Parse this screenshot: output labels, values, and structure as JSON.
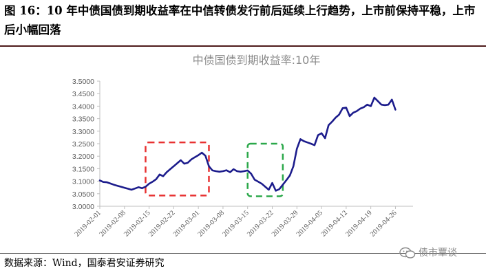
{
  "figure": {
    "title": "图 16：10 年中债国债到期收益率在中信转债发行前后延续上行趋势，上市前保持平稳，上市后小幅回落",
    "source": "数据来源：Wind，国泰君安证券研究",
    "watermark": "债市覃谈",
    "watermark_icon": "wechat-icon"
  },
  "chart_data": {
    "type": "line",
    "title": "中债国债到期收益率:10年",
    "xlabel": "",
    "ylabel": "",
    "ylim": [
      3.0,
      3.5
    ],
    "yticks": [
      "3.0000",
      "3.0500",
      "3.1000",
      "3.1500",
      "3.2000",
      "3.2500",
      "3.3000",
      "3.3500",
      "3.4000",
      "3.4500",
      "3.5000"
    ],
    "xticks": [
      "2019-02-01",
      "2019-02-08",
      "2019-02-15",
      "2019-02-22",
      "2019-03-01",
      "2019-03-08",
      "2019-03-15",
      "2019-03-22",
      "2019-03-29",
      "2019-04-05",
      "2019-04-12",
      "2019-04-19",
      "2019-04-26"
    ],
    "series": [
      {
        "color": "#1c1c8c",
        "values": [
          [
            "2019-02-01",
            3.103
          ],
          [
            "2019-02-02",
            3.097
          ],
          [
            "2019-02-03",
            3.096
          ],
          [
            "2019-02-04",
            3.091
          ],
          [
            "2019-02-05",
            3.086
          ],
          [
            "2019-02-06",
            3.082
          ],
          [
            "2019-02-07",
            3.078
          ],
          [
            "2019-02-08",
            3.074
          ],
          [
            "2019-02-09",
            3.07
          ],
          [
            "2019-02-10",
            3.066
          ],
          [
            "2019-02-11",
            3.071
          ],
          [
            "2019-02-12",
            3.076
          ],
          [
            "2019-02-13",
            3.072
          ],
          [
            "2019-02-14",
            3.078
          ],
          [
            "2019-02-15",
            3.09
          ],
          [
            "2019-02-16",
            3.098
          ],
          [
            "2019-02-17",
            3.108
          ],
          [
            "2019-02-18",
            3.127
          ],
          [
            "2019-02-19",
            3.12
          ],
          [
            "2019-02-20",
            3.136
          ],
          [
            "2019-02-21",
            3.148
          ],
          [
            "2019-02-22",
            3.16
          ],
          [
            "2019-02-23",
            3.172
          ],
          [
            "2019-02-24",
            3.184
          ],
          [
            "2019-02-25",
            3.17
          ],
          [
            "2019-02-26",
            3.174
          ],
          [
            "2019-02-27",
            3.187
          ],
          [
            "2019-02-28",
            3.196
          ],
          [
            "2019-03-01",
            3.204
          ],
          [
            "2019-03-02",
            3.214
          ],
          [
            "2019-03-03",
            3.202
          ],
          [
            "2019-03-04",
            3.16
          ],
          [
            "2019-03-05",
            3.143
          ],
          [
            "2019-03-06",
            3.14
          ],
          [
            "2019-03-07",
            3.138
          ],
          [
            "2019-03-08",
            3.14
          ],
          [
            "2019-03-09",
            3.144
          ],
          [
            "2019-03-10",
            3.136
          ],
          [
            "2019-03-11",
            3.148
          ],
          [
            "2019-03-12",
            3.14
          ],
          [
            "2019-03-13",
            3.138
          ],
          [
            "2019-03-14",
            3.14
          ],
          [
            "2019-03-15",
            3.143
          ],
          [
            "2019-03-16",
            3.13
          ],
          [
            "2019-03-17",
            3.106
          ],
          [
            "2019-03-18",
            3.098
          ],
          [
            "2019-03-19",
            3.09
          ],
          [
            "2019-03-20",
            3.078
          ],
          [
            "2019-03-21",
            3.066
          ],
          [
            "2019-03-22",
            3.093
          ],
          [
            "2019-03-23",
            3.062
          ],
          [
            "2019-03-24",
            3.068
          ],
          [
            "2019-03-25",
            3.086
          ],
          [
            "2019-03-26",
            3.104
          ],
          [
            "2019-03-27",
            3.123
          ],
          [
            "2019-03-28",
            3.16
          ],
          [
            "2019-03-29",
            3.23
          ],
          [
            "2019-03-30",
            3.268
          ],
          [
            "2019-03-31",
            3.26
          ],
          [
            "2019-04-01",
            3.255
          ],
          [
            "2019-04-02",
            3.25
          ],
          [
            "2019-04-03",
            3.244
          ],
          [
            "2019-04-04",
            3.284
          ],
          [
            "2019-04-05",
            3.292
          ],
          [
            "2019-04-06",
            3.272
          ],
          [
            "2019-04-07",
            3.324
          ],
          [
            "2019-04-08",
            3.338
          ],
          [
            "2019-04-09",
            3.354
          ],
          [
            "2019-04-10",
            3.366
          ],
          [
            "2019-04-11",
            3.392
          ],
          [
            "2019-04-12",
            3.394
          ],
          [
            "2019-04-13",
            3.36
          ],
          [
            "2019-04-14",
            3.374
          ],
          [
            "2019-04-15",
            3.38
          ],
          [
            "2019-04-16",
            3.39
          ],
          [
            "2019-04-17",
            3.396
          ],
          [
            "2019-04-18",
            3.406
          ],
          [
            "2019-04-19",
            3.4
          ],
          [
            "2019-04-20",
            3.434
          ],
          [
            "2019-04-21",
            3.42
          ],
          [
            "2019-04-22",
            3.406
          ],
          [
            "2019-04-23",
            3.404
          ],
          [
            "2019-04-24",
            3.406
          ],
          [
            "2019-04-25",
            3.426
          ],
          [
            "2019-04-26",
            3.386
          ]
        ]
      }
    ],
    "annotations": [
      {
        "type": "dashed-box",
        "color": "#e83232",
        "x": [
          "2019-02-14",
          "2019-03-04"
        ],
        "y": [
          3.043,
          3.255
        ]
      },
      {
        "type": "dashed-box",
        "color": "#2ba84a",
        "x": [
          "2019-03-15",
          "2019-03-25"
        ],
        "y": [
          3.04,
          3.25
        ]
      }
    ],
    "grid": false,
    "legend": "none"
  }
}
